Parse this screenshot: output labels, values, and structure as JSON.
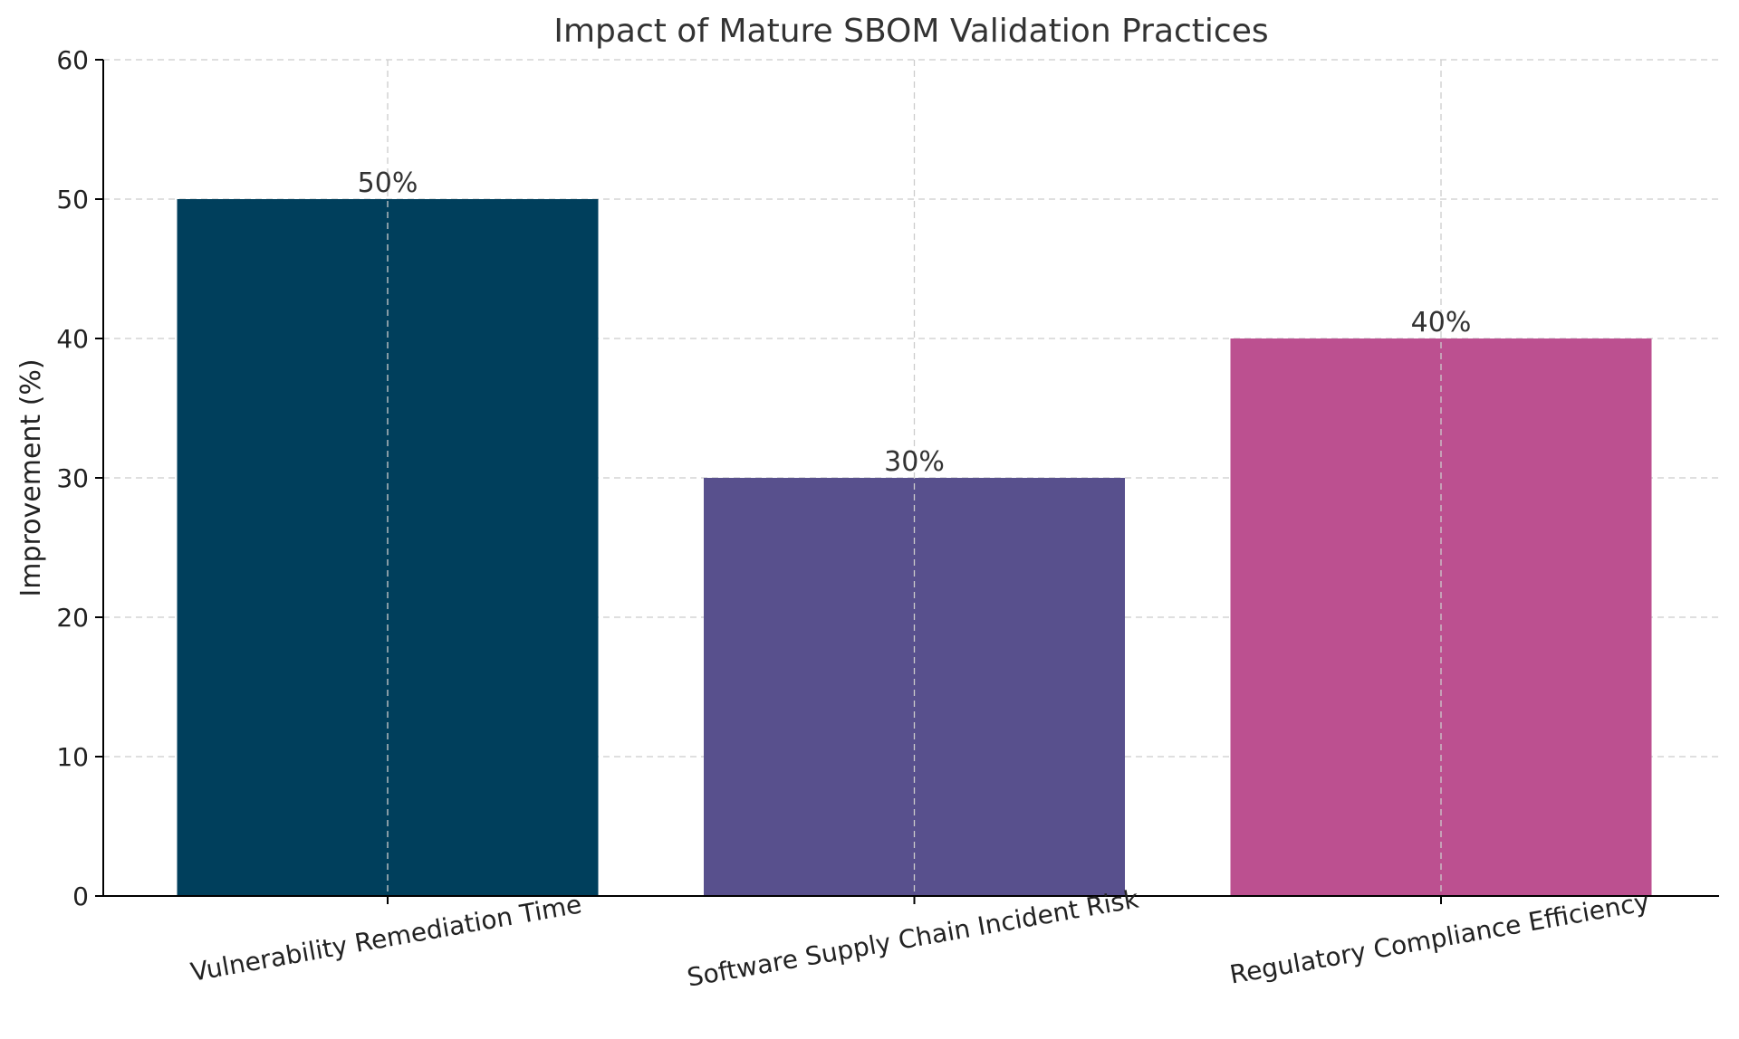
{
  "chart_data": {
    "type": "bar",
    "title": "Impact of Mature SBOM Validation Practices",
    "xlabel": "",
    "ylabel": "Improvement (%)",
    "ylim": [
      0,
      60
    ],
    "yticks": [
      "0",
      "10",
      "20",
      "30",
      "40",
      "50",
      "60"
    ],
    "grid": true,
    "categories": [
      "Vulnerability Remediation Time",
      "Software Supply Chain Incident Risk",
      "Regulatory Compliance Efficiency"
    ],
    "values": [
      50,
      30,
      40
    ],
    "value_labels": [
      "50%",
      "30%",
      "40%"
    ],
    "colors": [
      "#003f5c",
      "#58508d",
      "#bc5090"
    ]
  }
}
